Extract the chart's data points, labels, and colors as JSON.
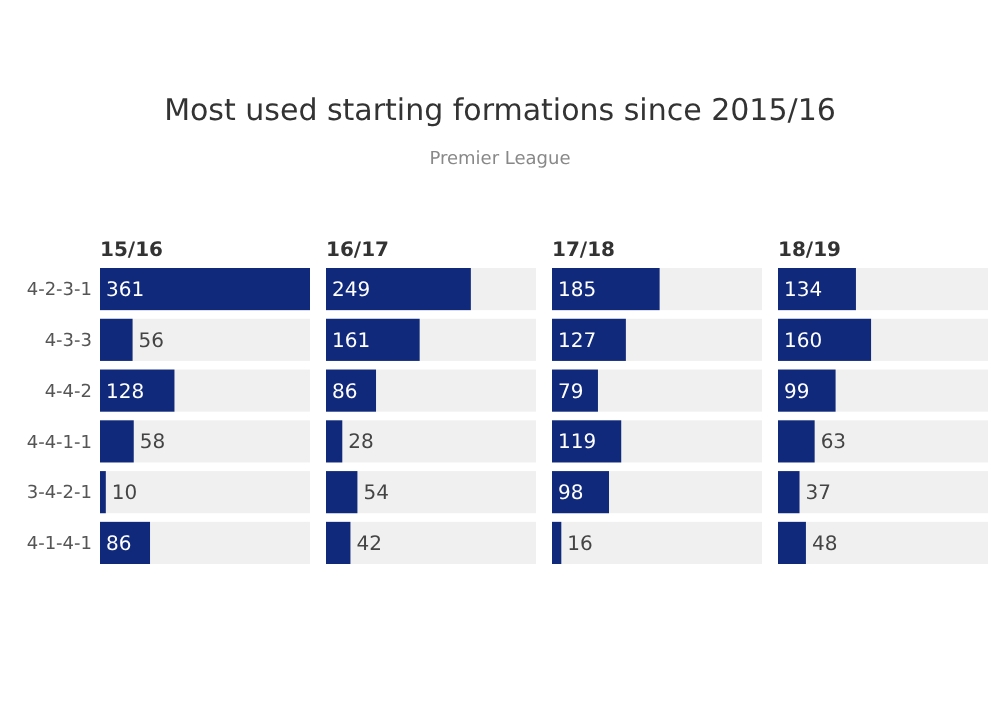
{
  "chart_data": [
    {
      "type": "other",
      "title": "Most used starting formations since 2015/16",
      "subtitle": "Premier League"
    },
    {
      "type": "bar",
      "orientation": "horizontal",
      "title": "15/16",
      "categories": [
        "4-2-3-1",
        "4-3-3",
        "4-4-2",
        "4-4-1-1",
        "3-4-2-1",
        "4-1-4-1"
      ],
      "values": [
        361,
        56,
        128,
        58,
        10,
        86
      ],
      "color": "#10297a",
      "data_labels": true,
      "tick_labels": "y"
    },
    {
      "type": "bar",
      "orientation": "horizontal",
      "title": "16/17",
      "categories": [
        null,
        null,
        null,
        null,
        null,
        null
      ],
      "values": [
        249,
        161,
        86,
        28,
        54,
        42
      ],
      "color": "#10297a",
      "data_labels": true,
      "tick_labels": false
    },
    {
      "type": "bar",
      "orientation": "horizontal",
      "title": "17/18",
      "categories": [
        null,
        null,
        null,
        null,
        null,
        null
      ],
      "values": [
        185,
        127,
        79,
        119,
        98,
        16
      ],
      "color": "#10297a",
      "data_labels": true,
      "tick_labels": false
    },
    {
      "type": "bar",
      "orientation": "horizontal",
      "title": "18/19",
      "categories": [
        null,
        null,
        null,
        null,
        null,
        null
      ],
      "values": [
        134,
        160,
        99,
        63,
        37,
        48
      ],
      "color": "#10297a",
      "data_labels": true,
      "tick_labels": false
    }
  ]
}
